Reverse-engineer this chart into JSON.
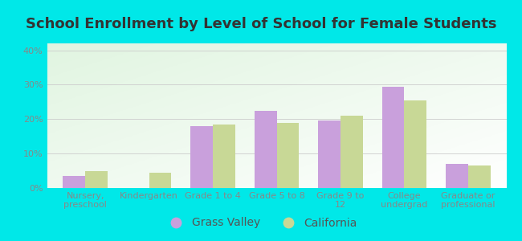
{
  "title": "School Enrollment by Level of School for Female Students",
  "categories": [
    "Nursery,\npreschool",
    "Kindergarten",
    "Grade 1 to 4",
    "Grade 5 to 8",
    "Grade 9 to\n12",
    "College\nundergrad",
    "Graduate or\nprofessional"
  ],
  "grass_valley": [
    3.5,
    0.0,
    18.0,
    22.5,
    19.5,
    29.5,
    7.0
  ],
  "california": [
    5.0,
    4.5,
    18.5,
    19.0,
    21.0,
    25.5,
    6.5
  ],
  "grass_valley_color": "#c9a0dc",
  "california_color": "#c8d896",
  "bar_width": 0.35,
  "ylim": [
    0,
    42
  ],
  "yticks": [
    0,
    10,
    20,
    30,
    40
  ],
  "yticklabels": [
    "0%",
    "10%",
    "20%",
    "30%",
    "40%"
  ],
  "background_color": "#00e8e8",
  "title_fontsize": 13,
  "tick_fontsize": 8,
  "legend_fontsize": 10
}
